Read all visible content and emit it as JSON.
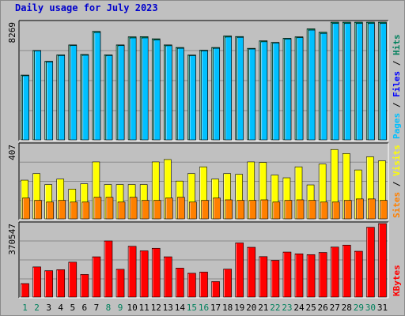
{
  "title": "Daily usage for July 2023",
  "colors": {
    "background": "#c0c0c0",
    "plot_background": "#c0c0c0",
    "hits": "#00805c",
    "files": "#0000ff",
    "pages": "#00c0ff",
    "visits": "#ffff00",
    "sites": "#ff8000",
    "kbytes": "#ff0000",
    "title": "#0000cc",
    "weekday_label": "#000000",
    "weekend_label": "#00805c"
  },
  "chart_data": [
    {
      "type": "bar",
      "name": "hits-files-pages",
      "ymax_label": "8269",
      "ymax": 8269,
      "ylabel_parts": [
        {
          "text": "Pages",
          "color": "#00c0ff"
        },
        {
          "text": " / ",
          "color": "#000000"
        },
        {
          "text": "Files",
          "color": "#0000ff"
        },
        {
          "text": " / ",
          "color": "#000000"
        },
        {
          "text": "Hits",
          "color": "#00805c"
        }
      ],
      "series": [
        {
          "name": "Hits",
          "values": [
            4550,
            6280,
            5520,
            5970,
            6670,
            6000,
            7620,
            5970,
            6670,
            7240,
            7250,
            7100,
            6670,
            6490,
            5960,
            6300,
            6490,
            7300,
            7260,
            6430,
            6960,
            6850,
            7140,
            7240,
            7800,
            7560,
            8269,
            8269,
            8269,
            8269,
            8269
          ]
        },
        {
          "name": "Pages",
          "values": [
            4500,
            6250,
            5470,
            5920,
            6620,
            5940,
            7540,
            5920,
            6620,
            7160,
            7160,
            7010,
            6610,
            6430,
            5910,
            6250,
            6430,
            7220,
            7200,
            6380,
            6890,
            6800,
            7080,
            7180,
            7710,
            7480,
            8180,
            8180,
            8180,
            8180,
            8180
          ]
        }
      ]
    },
    {
      "type": "bar",
      "name": "visits-sites",
      "ymax_label": "407",
      "ymax": 407,
      "ylabel_parts": [
        {
          "text": "Sites",
          "color": "#ff8000"
        },
        {
          "text": " / ",
          "color": "#000000"
        },
        {
          "text": "Visits",
          "color": "#ffff00"
        }
      ],
      "series": [
        {
          "name": "Visits",
          "values": [
            212,
            248,
            188,
            218,
            163,
            192,
            312,
            188,
            188,
            188,
            188,
            312,
            325,
            207,
            248,
            285,
            218,
            248,
            244,
            312,
            309,
            240,
            225,
            285,
            186,
            300,
            380,
            358,
            268,
            340,
            318
          ]
        },
        {
          "name": "Sites",
          "values": [
            114,
            101,
            92,
            101,
            92,
            92,
            118,
            118,
            92,
            118,
            101,
            101,
            114,
            118,
            92,
            101,
            114,
            104,
            101,
            101,
            104,
            92,
            101,
            104,
            101,
            92,
            92,
            101,
            109,
            109,
            101
          ]
        }
      ]
    },
    {
      "type": "bar",
      "name": "kbytes",
      "ymax_label": "370547",
      "ymax": 370547,
      "ylabel_parts": [
        {
          "text": "KBytes",
          "color": "#ff0000"
        }
      ],
      "series": [
        {
          "name": "KBytes",
          "values": [
            68000,
            152000,
            133000,
            138000,
            176000,
            114000,
            203000,
            283000,
            140000,
            256000,
            233000,
            246000,
            203000,
            146000,
            120000,
            126000,
            78000,
            141000,
            273000,
            251000,
            204000,
            185000,
            227000,
            218000,
            214000,
            225000,
            252000,
            262000,
            231000,
            352000,
            370547
          ]
        }
      ]
    }
  ],
  "x_labels": [
    {
      "text": "1",
      "weekend": true
    },
    {
      "text": "2",
      "weekend": true
    },
    {
      "text": "3",
      "weekend": false
    },
    {
      "text": "4",
      "weekend": false
    },
    {
      "text": "5",
      "weekend": false
    },
    {
      "text": "6",
      "weekend": false
    },
    {
      "text": "7",
      "weekend": false
    },
    {
      "text": "8",
      "weekend": true
    },
    {
      "text": "9",
      "weekend": true
    },
    {
      "text": "10",
      "weekend": false
    },
    {
      "text": "11",
      "weekend": false
    },
    {
      "text": "12",
      "weekend": false
    },
    {
      "text": "13",
      "weekend": false
    },
    {
      "text": "14",
      "weekend": false
    },
    {
      "text": "15",
      "weekend": true
    },
    {
      "text": "16",
      "weekend": true
    },
    {
      "text": "17",
      "weekend": false
    },
    {
      "text": "18",
      "weekend": false
    },
    {
      "text": "19",
      "weekend": false
    },
    {
      "text": "20",
      "weekend": false
    },
    {
      "text": "21",
      "weekend": false
    },
    {
      "text": "22",
      "weekend": true
    },
    {
      "text": "23",
      "weekend": true
    },
    {
      "text": "24",
      "weekend": false
    },
    {
      "text": "25",
      "weekend": false
    },
    {
      "text": "26",
      "weekend": false
    },
    {
      "text": "27",
      "weekend": false
    },
    {
      "text": "28",
      "weekend": false
    },
    {
      "text": "29",
      "weekend": true
    },
    {
      "text": "30",
      "weekend": true
    },
    {
      "text": "31",
      "weekend": false
    }
  ]
}
